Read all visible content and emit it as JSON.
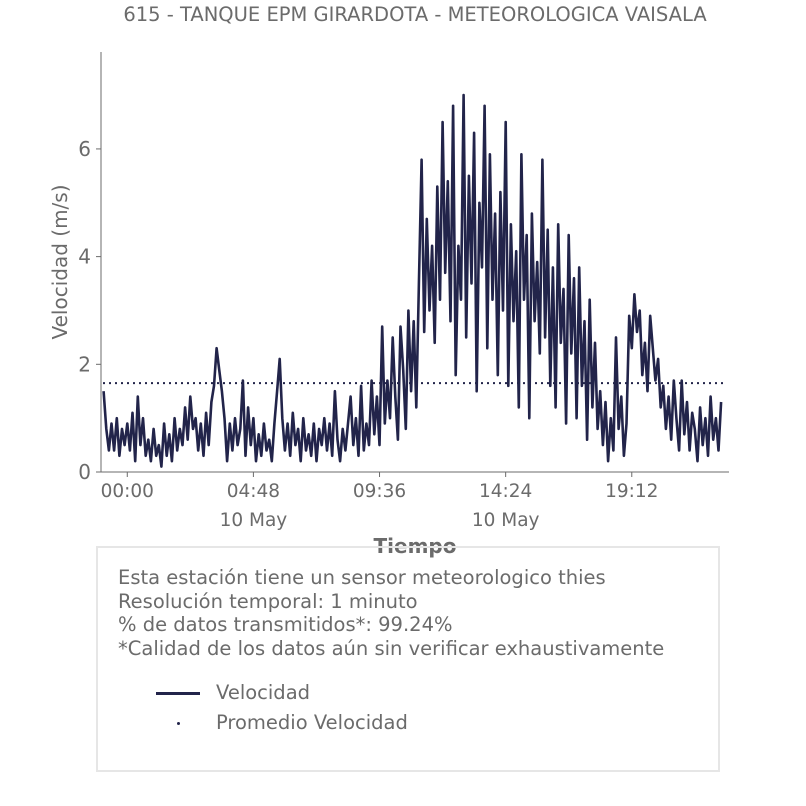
{
  "chart_data": {
    "type": "line",
    "title": "615 - TANQUE EPM GIRARDOTA - METEOROLOGICA VAISALA",
    "xlabel": "Tiempo",
    "ylabel": "Velocidad (m/s)",
    "ylim": [
      0,
      7.8
    ],
    "yticks": [
      "0",
      "2",
      "4",
      "6"
    ],
    "xticks": [
      {
        "time": "00:00",
        "date": ""
      },
      {
        "time": "04:48",
        "date": "10 May"
      },
      {
        "time": "09:36",
        "date": ""
      },
      {
        "time": "14:24",
        "date": "10 May"
      },
      {
        "time": "19:12",
        "date": ""
      }
    ],
    "x_unit": "hours since 00:00, 10 May",
    "series": [
      {
        "name": "Velocidad",
        "color": "#22244a",
        "points": [
          [
            -0.9,
            1.5
          ],
          [
            -0.8,
            0.8
          ],
          [
            -0.7,
            0.4
          ],
          [
            -0.6,
            0.9
          ],
          [
            -0.5,
            0.4
          ],
          [
            -0.4,
            1.0
          ],
          [
            -0.3,
            0.3
          ],
          [
            -0.2,
            0.8
          ],
          [
            -0.1,
            0.5
          ],
          [
            0.0,
            0.9
          ],
          [
            0.1,
            0.4
          ],
          [
            0.2,
            1.1
          ],
          [
            0.3,
            0.2
          ],
          [
            0.4,
            1.4
          ],
          [
            0.5,
            0.5
          ],
          [
            0.6,
            1.0
          ],
          [
            0.7,
            0.3
          ],
          [
            0.8,
            0.6
          ],
          [
            0.9,
            0.2
          ],
          [
            1.0,
            0.8
          ],
          [
            1.1,
            0.3
          ],
          [
            1.2,
            0.5
          ],
          [
            1.3,
            0.1
          ],
          [
            1.4,
            0.9
          ],
          [
            1.5,
            0.3
          ],
          [
            1.6,
            0.7
          ],
          [
            1.7,
            0.2
          ],
          [
            1.8,
            1.0
          ],
          [
            1.9,
            0.4
          ],
          [
            2.0,
            0.8
          ],
          [
            2.1,
            0.5
          ],
          [
            2.2,
            1.2
          ],
          [
            2.3,
            0.6
          ],
          [
            2.4,
            1.4
          ],
          [
            2.5,
            0.8
          ],
          [
            2.6,
            1.0
          ],
          [
            2.7,
            0.4
          ],
          [
            2.8,
            0.9
          ],
          [
            2.9,
            0.3
          ],
          [
            3.0,
            1.1
          ],
          [
            3.1,
            0.5
          ],
          [
            3.2,
            1.3
          ],
          [
            3.3,
            1.6
          ],
          [
            3.4,
            2.3
          ],
          [
            3.5,
            1.9
          ],
          [
            3.6,
            1.5
          ],
          [
            3.7,
            1.0
          ],
          [
            3.8,
            0.2
          ],
          [
            3.9,
            0.9
          ],
          [
            4.0,
            0.4
          ],
          [
            4.1,
            1.0
          ],
          [
            4.2,
            0.5
          ],
          [
            4.3,
            0.8
          ],
          [
            4.4,
            1.7
          ],
          [
            4.5,
            0.3
          ],
          [
            4.6,
            1.2
          ],
          [
            4.7,
            0.5
          ],
          [
            4.8,
            1.0
          ],
          [
            4.9,
            0.2
          ],
          [
            5.0,
            0.7
          ],
          [
            5.1,
            0.3
          ],
          [
            5.2,
            0.9
          ],
          [
            5.3,
            0.4
          ],
          [
            5.4,
            0.6
          ],
          [
            5.5,
            0.2
          ],
          [
            5.6,
            0.9
          ],
          [
            5.7,
            1.5
          ],
          [
            5.8,
            2.1
          ],
          [
            5.9,
            1.0
          ],
          [
            6.0,
            0.4
          ],
          [
            6.1,
            0.9
          ],
          [
            6.2,
            0.3
          ],
          [
            6.3,
            1.1
          ],
          [
            6.4,
            0.5
          ],
          [
            6.5,
            0.8
          ],
          [
            6.6,
            0.2
          ],
          [
            6.7,
            1.0
          ],
          [
            6.8,
            0.4
          ],
          [
            6.9,
            0.7
          ],
          [
            7.0,
            0.3
          ],
          [
            7.1,
            0.9
          ],
          [
            7.2,
            0.2
          ],
          [
            7.3,
            0.8
          ],
          [
            7.4,
            0.5
          ],
          [
            7.5,
            1.0
          ],
          [
            7.6,
            0.4
          ],
          [
            7.7,
            0.9
          ],
          [
            7.8,
            0.3
          ],
          [
            7.9,
            1.5
          ],
          [
            8.0,
            0.6
          ],
          [
            8.1,
            0.2
          ],
          [
            8.2,
            0.8
          ],
          [
            8.3,
            0.4
          ],
          [
            8.4,
            0.9
          ],
          [
            8.5,
            1.4
          ],
          [
            8.6,
            0.5
          ],
          [
            8.7,
            1.0
          ],
          [
            8.8,
            0.3
          ],
          [
            8.9,
            1.6
          ],
          [
            9.0,
            0.4
          ],
          [
            9.1,
            0.9
          ],
          [
            9.2,
            0.5
          ],
          [
            9.3,
            1.7
          ],
          [
            9.4,
            0.7
          ],
          [
            9.5,
            1.4
          ],
          [
            9.6,
            0.5
          ],
          [
            9.7,
            2.7
          ],
          [
            9.8,
            0.9
          ],
          [
            9.9,
            1.7
          ],
          [
            10.0,
            1.0
          ],
          [
            10.1,
            2.5
          ],
          [
            10.2,
            1.4
          ],
          [
            10.3,
            0.6
          ],
          [
            10.4,
            2.7
          ],
          [
            10.5,
            1.9
          ],
          [
            10.6,
            0.8
          ],
          [
            10.7,
            3.0
          ],
          [
            10.8,
            1.5
          ],
          [
            10.9,
            2.8
          ],
          [
            11.0,
            1.2
          ],
          [
            11.1,
            3.5
          ],
          [
            11.2,
            5.8
          ],
          [
            11.3,
            2.6
          ],
          [
            11.4,
            4.7
          ],
          [
            11.5,
            3.0
          ],
          [
            11.6,
            4.2
          ],
          [
            11.7,
            2.4
          ],
          [
            11.8,
            5.3
          ],
          [
            11.9,
            3.2
          ],
          [
            12.0,
            6.5
          ],
          [
            12.1,
            3.7
          ],
          [
            12.2,
            5.4
          ],
          [
            12.3,
            2.8
          ],
          [
            12.4,
            6.8
          ],
          [
            12.5,
            1.8
          ],
          [
            12.6,
            4.2
          ],
          [
            12.7,
            3.2
          ],
          [
            12.8,
            7.0
          ],
          [
            12.9,
            2.5
          ],
          [
            13.0,
            5.5
          ],
          [
            13.1,
            3.5
          ],
          [
            13.2,
            6.3
          ],
          [
            13.3,
            1.5
          ],
          [
            13.4,
            5.0
          ],
          [
            13.5,
            3.8
          ],
          [
            13.6,
            6.8
          ],
          [
            13.7,
            2.3
          ],
          [
            13.8,
            5.9
          ],
          [
            13.9,
            3.2
          ],
          [
            14.0,
            4.8
          ],
          [
            14.1,
            1.8
          ],
          [
            14.2,
            5.2
          ],
          [
            14.3,
            3.0
          ],
          [
            14.4,
            6.5
          ],
          [
            14.5,
            1.6
          ],
          [
            14.6,
            4.6
          ],
          [
            14.7,
            2.8
          ],
          [
            14.8,
            4.1
          ],
          [
            14.9,
            1.2
          ],
          [
            15.0,
            5.9
          ],
          [
            15.1,
            3.2
          ],
          [
            15.2,
            4.4
          ],
          [
            15.3,
            1.0
          ],
          [
            15.4,
            4.8
          ],
          [
            15.5,
            2.8
          ],
          [
            15.6,
            3.9
          ],
          [
            15.7,
            2.2
          ],
          [
            15.8,
            5.8
          ],
          [
            15.9,
            2.5
          ],
          [
            16.0,
            4.5
          ],
          [
            16.1,
            1.6
          ],
          [
            16.2,
            3.8
          ],
          [
            16.3,
            1.2
          ],
          [
            16.4,
            4.6
          ],
          [
            16.5,
            2.4
          ],
          [
            16.6,
            3.4
          ],
          [
            16.7,
            0.9
          ],
          [
            16.8,
            4.4
          ],
          [
            16.9,
            2.2
          ],
          [
            17.0,
            3.6
          ],
          [
            17.1,
            1.0
          ],
          [
            17.2,
            3.8
          ],
          [
            17.3,
            1.6
          ],
          [
            17.4,
            2.8
          ],
          [
            17.5,
            0.6
          ],
          [
            17.6,
            3.2
          ],
          [
            17.7,
            1.2
          ],
          [
            17.8,
            2.4
          ],
          [
            17.9,
            0.8
          ],
          [
            18.0,
            1.5
          ],
          [
            18.1,
            0.5
          ],
          [
            18.2,
            1.3
          ],
          [
            18.3,
            0.2
          ],
          [
            18.4,
            1.0
          ],
          [
            18.5,
            0.4
          ],
          [
            18.6,
            2.5
          ],
          [
            18.7,
            0.8
          ],
          [
            18.8,
            1.4
          ],
          [
            18.9,
            0.3
          ],
          [
            19.0,
            0.9
          ],
          [
            19.1,
            2.9
          ],
          [
            19.2,
            2.3
          ],
          [
            19.3,
            3.3
          ],
          [
            19.4,
            2.6
          ],
          [
            19.5,
            3.0
          ],
          [
            19.6,
            1.8
          ],
          [
            19.7,
            2.4
          ],
          [
            19.8,
            1.5
          ],
          [
            19.9,
            2.9
          ],
          [
            20.0,
            2.3
          ],
          [
            20.1,
            1.7
          ],
          [
            20.2,
            2.1
          ],
          [
            20.3,
            1.2
          ],
          [
            20.4,
            1.6
          ],
          [
            20.5,
            0.8
          ],
          [
            20.6,
            1.4
          ],
          [
            20.7,
            0.6
          ],
          [
            20.8,
            1.7
          ],
          [
            20.9,
            1.0
          ],
          [
            21.0,
            0.4
          ],
          [
            21.1,
            1.7
          ],
          [
            21.2,
            0.7
          ],
          [
            21.3,
            1.3
          ],
          [
            21.4,
            0.4
          ],
          [
            21.5,
            1.1
          ],
          [
            21.6,
            0.8
          ],
          [
            21.7,
            0.2
          ],
          [
            21.8,
            1.2
          ],
          [
            21.9,
            0.5
          ],
          [
            22.0,
            1.0
          ],
          [
            22.1,
            0.3
          ],
          [
            22.2,
            1.4
          ],
          [
            22.3,
            0.6
          ],
          [
            22.4,
            1.0
          ],
          [
            22.5,
            0.4
          ],
          [
            22.6,
            1.3
          ]
        ]
      },
      {
        "name": "Promedio Velocidad",
        "color": "#22244a",
        "style": "dotted",
        "constant": 1.65
      }
    ],
    "grid": false,
    "legend": "box below the chart"
  },
  "info": {
    "lines": [
      "Esta estación tiene un sensor meteorologico thies",
      "Resolución temporal: 1 minuto",
      "% de datos transmitidos*: 99.24%",
      "*Calidad de los datos aún sin verificar exhaustivamente"
    ]
  },
  "legend": {
    "items": [
      "Velocidad",
      "Promedio Velocidad"
    ]
  }
}
